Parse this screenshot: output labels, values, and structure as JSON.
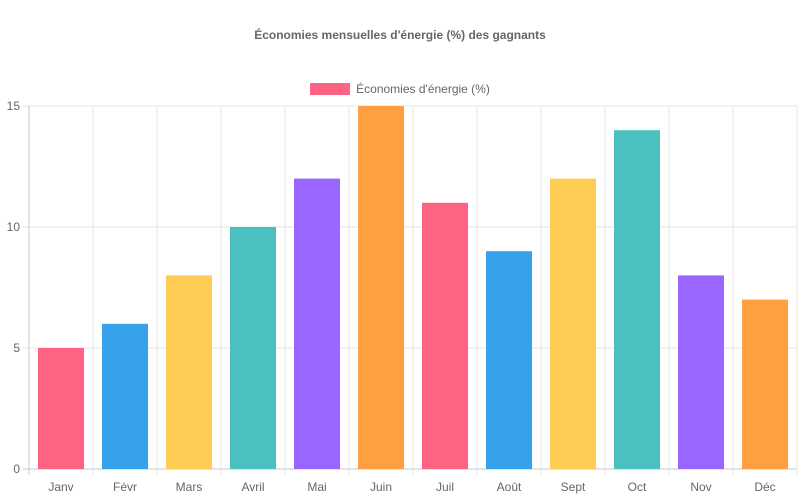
{
  "chart_data": {
    "type": "bar",
    "title": "Économies mensuelles d'énergie (%) des gagnants",
    "categories": [
      "Janv",
      "Févr",
      "Mars",
      "Avril",
      "Mai",
      "Juin",
      "Juil",
      "Août",
      "Sept",
      "Oct",
      "Nov",
      "Déc"
    ],
    "series": [
      {
        "name": "Économies d'énergie (%)",
        "values": [
          5,
          6,
          8,
          10,
          12,
          15,
          11,
          9,
          12,
          14,
          8,
          7
        ]
      }
    ],
    "bar_colors": [
      "#ff6384",
      "#36a2eb",
      "#ffcd56",
      "#4bc0c0",
      "#9966ff",
      "#ff9f40",
      "#ff6384",
      "#36a2eb",
      "#ffcd56",
      "#4bc0c0",
      "#9966ff",
      "#ff9f40"
    ],
    "legend_color": "#ff6384",
    "ylim": [
      0,
      15
    ],
    "yticks": [
      0,
      5,
      10,
      15
    ],
    "xlabel": "",
    "ylabel": "",
    "grid": true,
    "legend_position": "top"
  }
}
